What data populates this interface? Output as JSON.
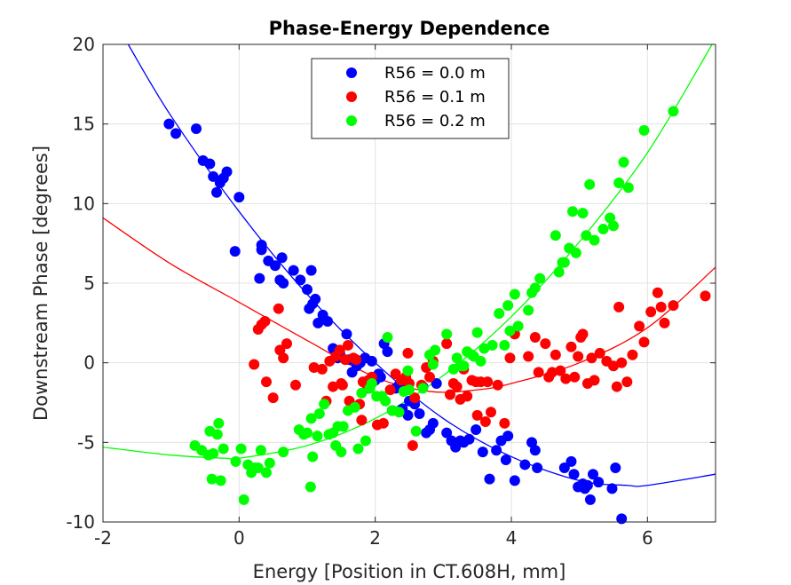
{
  "chart_data": {
    "type": "scatter",
    "title": "Phase-Energy Dependence",
    "xlabel": "Energy [Position in CT.608H, mm]",
    "ylabel": "Downstream Phase [degrees]",
    "xlim": [
      -2,
      7
    ],
    "ylim": [
      -10,
      20
    ],
    "xticks": [
      -2,
      0,
      2,
      4,
      6
    ],
    "yticks": [
      -10,
      -5,
      0,
      5,
      10,
      15,
      20
    ],
    "grid": true,
    "legend_position": "top-center",
    "series": [
      {
        "name": "R56 = 0.0 m",
        "color": "#0000ff",
        "fit": [
          [
            -1.63,
            20.0
          ],
          [
            -1.0,
            15.5
          ],
          [
            0.0,
            9.5
          ],
          [
            1.0,
            4.3
          ],
          [
            2.0,
            0.0
          ],
          [
            3.0,
            -3.5
          ],
          [
            4.0,
            -5.9
          ],
          [
            5.0,
            -7.4
          ],
          [
            5.7,
            -7.7
          ],
          [
            6.0,
            -7.7
          ],
          [
            7.0,
            -7.0
          ]
        ],
        "points": [
          [
            -1.03,
            15.0
          ],
          [
            -0.93,
            14.4
          ],
          [
            -0.63,
            14.7
          ],
          [
            -0.53,
            12.7
          ],
          [
            -0.43,
            12.5
          ],
          [
            -0.38,
            11.7
          ],
          [
            -0.33,
            10.7
          ],
          [
            -0.28,
            11.3
          ],
          [
            -0.23,
            11.6
          ],
          [
            -0.18,
            12.0
          ],
          [
            0.0,
            10.4
          ],
          [
            -0.06,
            7.0
          ],
          [
            0.33,
            7.4
          ],
          [
            0.33,
            7.1
          ],
          [
            0.3,
            5.3
          ],
          [
            0.43,
            6.4
          ],
          [
            0.53,
            6.1
          ],
          [
            0.6,
            5.2
          ],
          [
            0.63,
            6.6
          ],
          [
            0.65,
            5.0
          ],
          [
            0.8,
            5.8
          ],
          [
            0.9,
            5.2
          ],
          [
            1.0,
            4.6
          ],
          [
            1.03,
            3.4
          ],
          [
            1.06,
            5.8
          ],
          [
            1.08,
            3.7
          ],
          [
            1.12,
            4.0
          ],
          [
            1.16,
            2.5
          ],
          [
            1.23,
            3.0
          ],
          [
            1.3,
            2.6
          ],
          [
            1.38,
            0.9
          ],
          [
            1.45,
            0.3
          ],
          [
            1.48,
            0.6
          ],
          [
            1.58,
            1.8
          ],
          [
            1.62,
            0.2
          ],
          [
            1.66,
            -0.6
          ],
          [
            1.73,
            -0.2
          ],
          [
            1.78,
            0.0
          ],
          [
            1.85,
            0.3
          ],
          [
            1.9,
            -1.6
          ],
          [
            1.95,
            0.1
          ],
          [
            2.0,
            -1.1
          ],
          [
            2.05,
            -0.7
          ],
          [
            2.08,
            -0.9
          ],
          [
            2.13,
            1.2
          ],
          [
            2.18,
            0.7
          ],
          [
            2.25,
            -3.0
          ],
          [
            2.3,
            -1.6
          ],
          [
            2.35,
            -1.4
          ],
          [
            2.4,
            -2.9
          ],
          [
            2.48,
            -3.3
          ],
          [
            2.5,
            -2.4
          ],
          [
            2.58,
            -2.6
          ],
          [
            2.65,
            -3.2
          ],
          [
            2.7,
            -1.5
          ],
          [
            2.75,
            -4.4
          ],
          [
            2.8,
            -4.2
          ],
          [
            2.85,
            -3.8
          ],
          [
            2.9,
            -1.3
          ],
          [
            3.05,
            -4.4
          ],
          [
            3.12,
            -4.9
          ],
          [
            3.18,
            -5.3
          ],
          [
            3.25,
            -4.9
          ],
          [
            3.3,
            -5.0
          ],
          [
            3.38,
            -4.8
          ],
          [
            3.48,
            -4.2
          ],
          [
            3.58,
            -5.6
          ],
          [
            3.68,
            -7.3
          ],
          [
            3.78,
            -5.5
          ],
          [
            3.85,
            -4.9
          ],
          [
            3.92,
            -6.1
          ],
          [
            3.95,
            -4.6
          ],
          [
            4.05,
            -7.4
          ],
          [
            4.2,
            -6.4
          ],
          [
            4.3,
            -5.0
          ],
          [
            4.35,
            -5.5
          ],
          [
            4.38,
            -6.6
          ],
          [
            4.78,
            -6.6
          ],
          [
            4.88,
            -6.2
          ],
          [
            4.92,
            -7.0
          ],
          [
            4.98,
            -7.8
          ],
          [
            5.05,
            -7.6
          ],
          [
            5.08,
            -7.9
          ],
          [
            5.12,
            -7.7
          ],
          [
            5.16,
            -8.6
          ],
          [
            5.2,
            -7.0
          ],
          [
            5.28,
            -7.5
          ],
          [
            5.48,
            -7.9
          ],
          [
            5.53,
            -6.6
          ],
          [
            5.62,
            -9.8
          ]
        ]
      },
      {
        "name": "R56 = 0.1 m",
        "color": "#ff0000",
        "fit": [
          [
            -2.0,
            9.1
          ],
          [
            -1.0,
            6.2
          ],
          [
            0.0,
            3.8
          ],
          [
            1.0,
            1.4
          ],
          [
            2.0,
            -0.9
          ],
          [
            2.8,
            -1.8
          ],
          [
            3.5,
            -1.7
          ],
          [
            4.0,
            -1.3
          ],
          [
            5.0,
            0.0
          ],
          [
            6.0,
            2.2
          ],
          [
            7.0,
            6.0
          ]
        ],
        "points": [
          [
            0.22,
            -0.1
          ],
          [
            0.28,
            2.1
          ],
          [
            0.33,
            2.4
          ],
          [
            0.38,
            2.6
          ],
          [
            0.4,
            -1.2
          ],
          [
            0.5,
            -2.2
          ],
          [
            0.58,
            3.4
          ],
          [
            0.6,
            0.8
          ],
          [
            0.65,
            0.3
          ],
          [
            0.7,
            1.2
          ],
          [
            0.83,
            -1.4
          ],
          [
            1.1,
            -0.3
          ],
          [
            1.22,
            -0.4
          ],
          [
            1.28,
            -2.4
          ],
          [
            1.33,
            0.1
          ],
          [
            1.38,
            -1.5
          ],
          [
            1.42,
            0.4
          ],
          [
            1.48,
            0.8
          ],
          [
            1.5,
            -1.3
          ],
          [
            1.52,
            -1.4
          ],
          [
            1.56,
            0.2
          ],
          [
            1.6,
            1.1
          ],
          [
            1.62,
            -2.4
          ],
          [
            1.68,
            0.3
          ],
          [
            1.72,
            0.2
          ],
          [
            1.77,
            -2.6
          ],
          [
            1.8,
            -3.6
          ],
          [
            1.82,
            -1.2
          ],
          [
            1.86,
            -1.3
          ],
          [
            1.9,
            -1.1
          ],
          [
            1.95,
            -0.9
          ],
          [
            2.03,
            -3.9
          ],
          [
            2.12,
            -3.8
          ],
          [
            2.22,
            -1.7
          ],
          [
            2.3,
            -0.7
          ],
          [
            2.38,
            -1.1
          ],
          [
            2.45,
            -0.9
          ],
          [
            2.48,
            0.6
          ],
          [
            2.5,
            -1.3
          ],
          [
            2.55,
            -5.2
          ],
          [
            2.58,
            -2.2
          ],
          [
            2.68,
            -1.4
          ],
          [
            2.75,
            -0.3
          ],
          [
            2.8,
            -0.9
          ],
          [
            2.85,
            0.1
          ],
          [
            3.05,
            1.2
          ],
          [
            3.1,
            -2.0
          ],
          [
            3.15,
            -1.3
          ],
          [
            3.2,
            -1.5
          ],
          [
            3.25,
            -2.3
          ],
          [
            3.3,
            -0.4
          ],
          [
            3.35,
            -2.1
          ],
          [
            3.42,
            -1.1
          ],
          [
            3.48,
            -1.2
          ],
          [
            3.5,
            -3.3
          ],
          [
            3.55,
            -1.2
          ],
          [
            3.62,
            -3.7
          ],
          [
            3.65,
            -1.2
          ],
          [
            3.7,
            -3.1
          ],
          [
            3.8,
            -1.4
          ],
          [
            3.9,
            -3.8
          ],
          [
            3.98,
            0.3
          ],
          [
            4.05,
            1.8
          ],
          [
            4.25,
            0.4
          ],
          [
            4.35,
            1.6
          ],
          [
            4.4,
            -0.6
          ],
          [
            4.5,
            1.2
          ],
          [
            4.55,
            -0.9
          ],
          [
            4.6,
            -0.6
          ],
          [
            4.65,
            0.5
          ],
          [
            4.72,
            -0.5
          ],
          [
            4.8,
            -1.0
          ],
          [
            4.88,
            1.0
          ],
          [
            4.93,
            -0.9
          ],
          [
            4.98,
            0.4
          ],
          [
            5.02,
            1.6
          ],
          [
            5.05,
            1.8
          ],
          [
            5.12,
            -1.3
          ],
          [
            5.18,
            0.3
          ],
          [
            5.22,
            -1.1
          ],
          [
            5.3,
            0.6
          ],
          [
            5.4,
            0.1
          ],
          [
            5.5,
            -0.2
          ],
          [
            5.55,
            -1.5
          ],
          [
            5.58,
            3.5
          ],
          [
            5.62,
            0.0
          ],
          [
            5.7,
            -1.2
          ],
          [
            5.78,
            0.5
          ],
          [
            5.88,
            2.3
          ],
          [
            5.95,
            1.3
          ],
          [
            6.05,
            3.2
          ],
          [
            6.15,
            4.4
          ],
          [
            6.2,
            3.5
          ],
          [
            6.25,
            2.5
          ],
          [
            6.38,
            3.6
          ],
          [
            6.85,
            4.2
          ]
        ]
      },
      {
        "name": "R56 = 0.2 m",
        "color": "#00ff00",
        "fit": [
          [
            -2.0,
            -5.3
          ],
          [
            -1.0,
            -5.8
          ],
          [
            -0.2,
            -6.0
          ],
          [
            0.0,
            -6.0
          ],
          [
            1.0,
            -5.2
          ],
          [
            2.0,
            -3.5
          ],
          [
            3.0,
            -0.8
          ],
          [
            4.0,
            2.9
          ],
          [
            5.0,
            7.6
          ],
          [
            6.0,
            13.2
          ],
          [
            6.95,
            20.0
          ]
        ],
        "points": [
          [
            -0.65,
            -5.2
          ],
          [
            -0.55,
            -5.5
          ],
          [
            -0.45,
            -5.8
          ],
          [
            -0.43,
            -4.3
          ],
          [
            -0.4,
            -7.3
          ],
          [
            -0.38,
            -5.7
          ],
          [
            -0.32,
            -4.5
          ],
          [
            -0.3,
            -3.8
          ],
          [
            -0.27,
            -7.4
          ],
          [
            -0.23,
            -5.4
          ],
          [
            -0.05,
            -6.2
          ],
          [
            0.03,
            -5.4
          ],
          [
            0.07,
            -8.6
          ],
          [
            0.13,
            -6.4
          ],
          [
            0.18,
            -6.9
          ],
          [
            0.23,
            -6.6
          ],
          [
            0.28,
            -6.6
          ],
          [
            0.32,
            -5.5
          ],
          [
            0.4,
            -6.9
          ],
          [
            0.45,
            -6.3
          ],
          [
            0.65,
            -5.6
          ],
          [
            0.88,
            -4.2
          ],
          [
            0.95,
            -4.5
          ],
          [
            1.0,
            -4.4
          ],
          [
            1.05,
            -7.8
          ],
          [
            1.06,
            -3.5
          ],
          [
            1.08,
            -5.9
          ],
          [
            1.15,
            -4.6
          ],
          [
            1.18,
            -3.2
          ],
          [
            1.25,
            -2.6
          ],
          [
            1.32,
            -4.5
          ],
          [
            1.38,
            -4.4
          ],
          [
            1.42,
            -5.2
          ],
          [
            1.45,
            -4.0
          ],
          [
            1.5,
            -5.6
          ],
          [
            1.53,
            -4.0
          ],
          [
            1.6,
            -3.0
          ],
          [
            1.7,
            -2.8
          ],
          [
            1.75,
            -5.4
          ],
          [
            1.8,
            -1.9
          ],
          [
            1.86,
            -4.9
          ],
          [
            1.92,
            -1.6
          ],
          [
            1.95,
            -1.3
          ],
          [
            2.02,
            -2.1
          ],
          [
            2.1,
            -2.1
          ],
          [
            2.15,
            -2.4
          ],
          [
            2.18,
            1.6
          ],
          [
            2.25,
            -3.0
          ],
          [
            2.35,
            -3.1
          ],
          [
            2.42,
            -1.8
          ],
          [
            2.48,
            -0.5
          ],
          [
            2.5,
            -1.7
          ],
          [
            2.6,
            -4.3
          ],
          [
            2.7,
            -1.6
          ],
          [
            2.8,
            0.5
          ],
          [
            2.85,
            -0.1
          ],
          [
            2.88,
            0.8
          ],
          [
            3.05,
            1.8
          ],
          [
            3.15,
            -0.4
          ],
          [
            3.2,
            0.3
          ],
          [
            3.25,
            -0.2
          ],
          [
            3.3,
            -0.2
          ],
          [
            3.35,
            0.7
          ],
          [
            3.42,
            0.5
          ],
          [
            3.45,
            0.4
          ],
          [
            3.5,
            1.9
          ],
          [
            3.55,
            0.1
          ],
          [
            3.6,
            0.9
          ],
          [
            3.72,
            1.1
          ],
          [
            3.82,
            3.1
          ],
          [
            3.9,
            1.1
          ],
          [
            3.95,
            3.6
          ],
          [
            3.98,
            2.0
          ],
          [
            4.05,
            4.3
          ],
          [
            4.1,
            2.3
          ],
          [
            4.25,
            3.3
          ],
          [
            4.3,
            4.4
          ],
          [
            4.35,
            4.7
          ],
          [
            4.42,
            5.3
          ],
          [
            4.65,
            8.0
          ],
          [
            4.7,
            5.7
          ],
          [
            4.75,
            6.3
          ],
          [
            4.78,
            6.3
          ],
          [
            4.85,
            7.2
          ],
          [
            4.9,
            9.5
          ],
          [
            4.95,
            6.9
          ],
          [
            5.05,
            9.4
          ],
          [
            5.1,
            8.0
          ],
          [
            5.15,
            11.2
          ],
          [
            5.22,
            7.7
          ],
          [
            5.35,
            8.4
          ],
          [
            5.45,
            9.1
          ],
          [
            5.5,
            8.6
          ],
          [
            5.58,
            11.3
          ],
          [
            5.65,
            12.6
          ],
          [
            5.72,
            11.0
          ],
          [
            5.95,
            14.6
          ],
          [
            6.38,
            15.8
          ]
        ]
      }
    ]
  }
}
